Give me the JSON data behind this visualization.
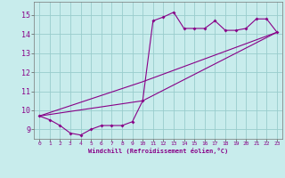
{
  "bg_color": "#c8ecec",
  "line_color": "#880088",
  "grid_color": "#99cccc",
  "xlabel": "Windchill (Refroidissement éolien,°C)",
  "xlim": [
    -0.5,
    23.5
  ],
  "ylim": [
    8.5,
    15.7
  ],
  "yticks": [
    9,
    10,
    11,
    12,
    13,
    14,
    15
  ],
  "xticks": [
    0,
    1,
    2,
    3,
    4,
    5,
    6,
    7,
    8,
    9,
    10,
    11,
    12,
    13,
    14,
    15,
    16,
    17,
    18,
    19,
    20,
    21,
    22,
    23
  ],
  "series1_x": [
    0,
    1,
    2,
    3,
    4,
    5,
    6,
    7,
    8,
    9,
    10,
    11,
    12,
    13,
    14,
    15,
    16,
    17,
    18,
    19,
    20,
    21,
    22,
    23
  ],
  "series1_y": [
    9.7,
    9.5,
    9.2,
    8.8,
    8.7,
    9.0,
    9.2,
    9.2,
    9.2,
    9.4,
    10.5,
    14.7,
    14.9,
    15.15,
    14.3,
    14.3,
    14.3,
    14.7,
    14.2,
    14.2,
    14.3,
    14.8,
    14.8,
    14.1
  ],
  "series2_x": [
    0,
    10,
    23
  ],
  "series2_y": [
    9.7,
    11.5,
    14.1
  ],
  "series3_x": [
    0,
    10,
    23
  ],
  "series3_y": [
    9.7,
    10.5,
    14.1
  ]
}
